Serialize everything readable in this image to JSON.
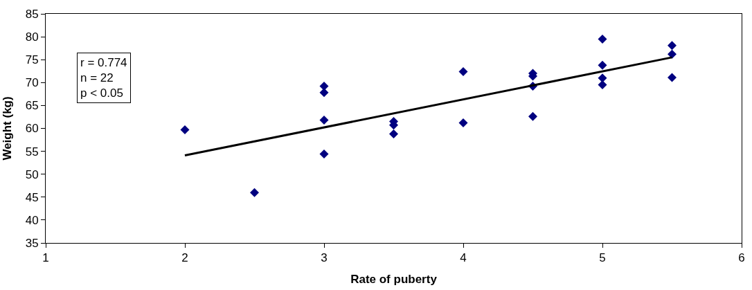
{
  "chart_data": {
    "type": "scatter",
    "xlabel": "Rate of puberty",
    "ylabel": "Weight (kg)",
    "annotations": [
      "r = 0.774\nn = 22\np < 0.05"
    ],
    "series": [
      {
        "color": "#000080",
        "marker": "diamond",
        "x": [
          2,
          2.5,
          3,
          3,
          3,
          3,
          3.5,
          3.5,
          3.5,
          4,
          4,
          4.5,
          4.5,
          4.5,
          4.5,
          5,
          5,
          5,
          5,
          5.5,
          5.5,
          5.5
        ],
        "values": [
          59.7,
          46,
          69.2,
          67.8,
          61.8,
          54.4,
          61.5,
          60.7,
          58.8,
          72.4,
          61.2,
          72,
          71.4,
          69.2,
          62.6,
          79.5,
          73.8,
          71,
          69.5,
          78.1,
          76.2,
          71.1
        ]
      },
      {
        "type": "line",
        "color": "#000000",
        "marker": "none",
        "x": [
          2,
          5.5
        ],
        "values": [
          54.1,
          75.5
        ]
      }
    ],
    "xlim": [
      1,
      6
    ],
    "xticks": [
      1,
      2,
      3,
      4,
      5,
      6
    ],
    "ylim": [
      35,
      85
    ],
    "yticks": [
      35,
      40,
      45,
      50,
      55,
      60,
      65,
      70,
      75,
      80,
      85
    ],
    "legend": false
  }
}
